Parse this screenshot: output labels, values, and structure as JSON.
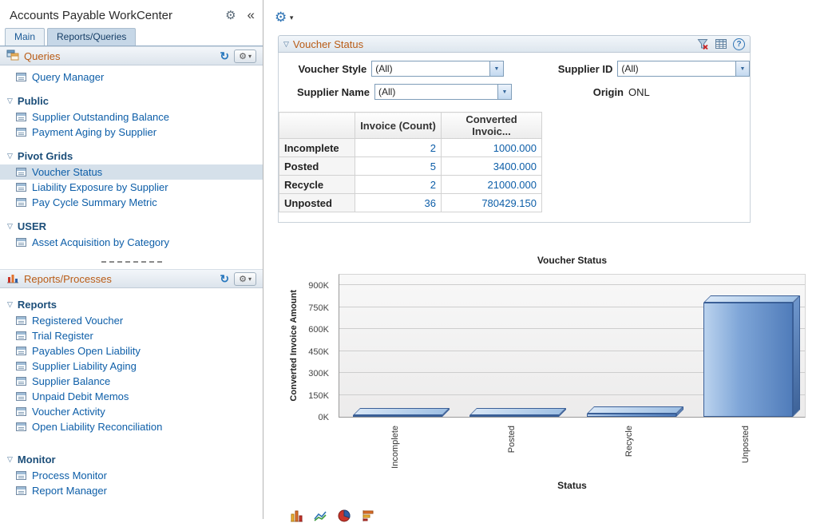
{
  "icons": {
    "gear": "⚙",
    "collapse": "«",
    "refresh": "↻",
    "caret_down": "▾",
    "expander": "▽",
    "help": "?",
    "combo_arrow": "▼"
  },
  "colors": {
    "accent_orange": "#B95C16",
    "link_blue": "#0D5EA8",
    "bar_blue": "#5B8BC9",
    "selected_bg": "#D5E0EA"
  },
  "sidebar": {
    "title": "Accounts Payable WorkCenter",
    "tabs": {
      "main": "Main",
      "reports_queries": "Reports/Queries"
    },
    "queries": {
      "title": "Queries",
      "query_manager": "Query Manager",
      "groups": [
        {
          "label": "Public",
          "items": [
            "Supplier Outstanding Balance",
            "Payment Aging by Supplier"
          ]
        },
        {
          "label": "Pivot Grids",
          "items": [
            "Voucher Status",
            "Liability Exposure by Supplier",
            "Pay Cycle Summary Metric"
          ]
        },
        {
          "label": "USER",
          "items": [
            "Asset Acquisition by Category"
          ]
        }
      ]
    },
    "reports": {
      "title": "Reports/Processes",
      "groups": [
        {
          "label": "Reports",
          "items": [
            "Registered Voucher",
            "Trial Register",
            "Payables Open Liability",
            "Supplier Liability Aging",
            "Supplier Balance",
            "Unpaid Debit Memos",
            "Voucher Activity",
            "Open Liability Reconciliation"
          ]
        },
        {
          "label": "Monitor",
          "items": [
            "Process Monitor",
            "Report Manager"
          ]
        }
      ]
    }
  },
  "main": {
    "panel": {
      "title": "Voucher Status"
    },
    "filters": {
      "voucher_style": {
        "label": "Voucher Style",
        "value": "(All)"
      },
      "supplier_id": {
        "label": "Supplier ID",
        "value": "(All)"
      },
      "supplier_name": {
        "label": "Supplier Name",
        "value": "(All)"
      },
      "origin": {
        "label": "Origin",
        "value": "ONL"
      }
    },
    "table": {
      "headers": {
        "count": "Invoice (Count)",
        "amount": "Converted Invoic..."
      },
      "rows": [
        {
          "label": "Incomplete",
          "count": "2",
          "amount": "1000.000"
        },
        {
          "label": "Posted",
          "count": "5",
          "amount": "3400.000"
        },
        {
          "label": "Recycle",
          "count": "2",
          "amount": "21000.000"
        },
        {
          "label": "Unposted",
          "count": "36",
          "amount": "780429.150"
        }
      ]
    }
  },
  "chart_data": {
    "type": "bar",
    "title": "Voucher Status",
    "categories": [
      "Incomplete",
      "Posted",
      "Recycle",
      "Unposted"
    ],
    "values": [
      1000,
      3400,
      21000,
      780429.15
    ],
    "xlabel": "Status",
    "ylabel": "Converted Invoice Amount",
    "ylim": [
      0,
      900000
    ],
    "yticks": [
      "0K",
      "150K",
      "300K",
      "450K",
      "600K",
      "750K",
      "900K"
    ],
    "grid": true,
    "legend": "none",
    "bar_color": "#5B8BC9"
  }
}
